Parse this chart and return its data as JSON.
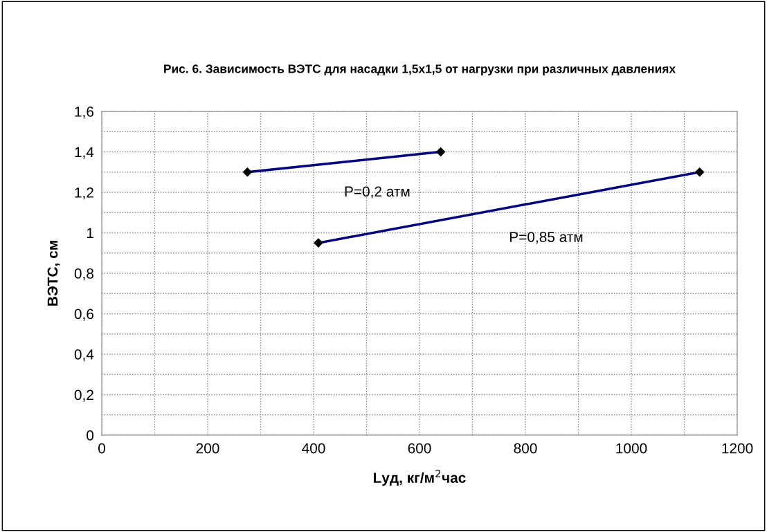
{
  "chart_data": {
    "type": "line",
    "title": "Рис. 6. Зависимость ВЭТС для насадки 1,5х1,5 от нагрузки при различных давлениях",
    "xlabel": "Lуд, кг/м$^{2}$час",
    "ylabel": "ВЭТС, см",
    "series": [
      {
        "name": "P=0,2 атм",
        "color": "#000080",
        "x": [
          275,
          640
        ],
        "values": [
          1.3,
          1.4
        ]
      },
      {
        "name": "P=0,85 атм",
        "color": "#000080",
        "x": [
          409,
          1129
        ],
        "values": [
          0.95,
          1.3
        ]
      }
    ],
    "xlim": [
      0,
      1200
    ],
    "ylim": [
      0,
      1.6
    ],
    "xticks": [
      0,
      {
        "value": 100,
        "label": null
      },
      200,
      {
        "value": 300,
        "label": null
      },
      400,
      {
        "value": 500,
        "label": null
      },
      600,
      {
        "value": 700,
        "label": null
      },
      800,
      {
        "value": 900,
        "label": null
      },
      1000,
      {
        "value": 1100,
        "label": null
      },
      1200
    ],
    "yticks": [
      {
        "value": 0,
        "label": "0"
      },
      {
        "value": 0.1,
        "label": null
      },
      {
        "value": 0.2,
        "label": "0,2"
      },
      {
        "value": 0.3,
        "label": null
      },
      {
        "value": 0.4,
        "label": "0,4"
      },
      {
        "value": 0.5,
        "label": null
      },
      {
        "value": 0.6,
        "label": "0,6"
      },
      {
        "value": 0.7,
        "label": null
      },
      {
        "value": 0.8,
        "label": "0,8"
      },
      {
        "value": 0.9,
        "label": null
      },
      {
        "value": 1,
        "label": "1"
      },
      {
        "value": 1.1,
        "label": null
      },
      {
        "value": 1.2,
        "label": "1,2"
      },
      {
        "value": 1.3,
        "label": null
      },
      {
        "value": 1.4,
        "label": "1,4"
      },
      {
        "value": 1.5,
        "label": null
      },
      {
        "value": 1.6,
        "label": "1,6"
      }
    ],
    "grid": true,
    "marker": "diamond",
    "line_style": "solid"
  }
}
